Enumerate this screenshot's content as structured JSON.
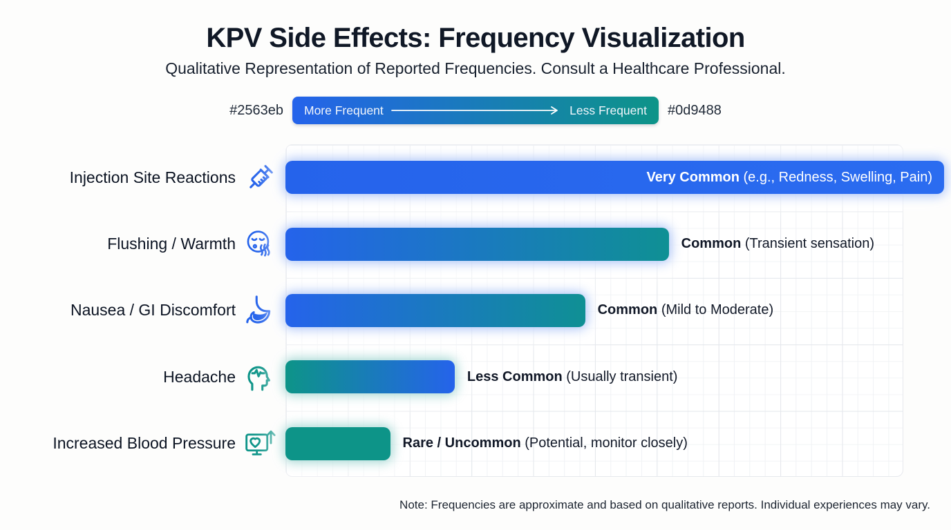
{
  "page": {
    "title": "KPV Side Effects: Frequency Visualization",
    "subtitle": "Qualitative Representation of Reported Frequencies. Consult a Healthcare Professional.",
    "note": "Note: Frequencies are approximate and based on qualitative reports. Individual experiences may vary."
  },
  "legend": {
    "left_hex": "#2563eb",
    "right_hex": "#0d9488",
    "start_label": "More Frequent",
    "end_label": "Less Frequent"
  },
  "colors": {
    "more_frequent": "#2563eb",
    "less_frequent": "#0d9488"
  },
  "rows": [
    {
      "label": "Injection Site Reactions",
      "icon": "syringe-icon",
      "width_pct": 100,
      "strong": "Very Common",
      "detail": " (e.g., Redness, Swelling, Pain)"
    },
    {
      "label": "Flushing / Warmth",
      "icon": "exhaling-face-icon",
      "width_pct": 58.2,
      "strong": "Common",
      "detail": " (Transient sensation)"
    },
    {
      "label": "Nausea / GI Discomfort",
      "icon": "stomach-icon",
      "width_pct": 45.5,
      "strong": "Common",
      "detail": " (Mild to Moderate)"
    },
    {
      "label": "Headache",
      "icon": "head-pulse-icon",
      "width_pct": 25.7,
      "strong": "Less Common",
      "detail": " (Usually transient)"
    },
    {
      "label": "Increased Blood Pressure",
      "icon": "monitor-heart-icon",
      "width_pct": 15.9,
      "strong": "Rare / Uncommon",
      "detail": " (Potential, monitor closely)"
    }
  ],
  "chart_data": {
    "type": "bar",
    "orientation": "horizontal",
    "title": "KPV Side Effects: Frequency Visualization",
    "subtitle": "Qualitative Representation of Reported Frequencies. Consult a Healthcare Professional.",
    "categories": [
      "Injection Site Reactions",
      "Flushing / Warmth",
      "Nausea / GI Discomfort",
      "Headache",
      "Increased Blood Pressure"
    ],
    "values_relative_pct": [
      100,
      58.2,
      45.5,
      25.7,
      15.9
    ],
    "frequency_labels": [
      "Very Common",
      "Common",
      "Common",
      "Less Common",
      "Rare / Uncommon"
    ],
    "frequency_details": [
      "(e.g., Redness, Swelling, Pain)",
      "(Transient sensation)",
      "(Mild to Moderate)",
      "(Usually transient)",
      "(Potential, monitor closely)"
    ],
    "legend": [
      "More Frequent",
      "Less Frequent"
    ],
    "color_scale": [
      "#2563eb",
      "#0d9488"
    ],
    "grid": true,
    "note": "Note: Frequencies are approximate and based on qualitative reports. Individual experiences may vary."
  }
}
